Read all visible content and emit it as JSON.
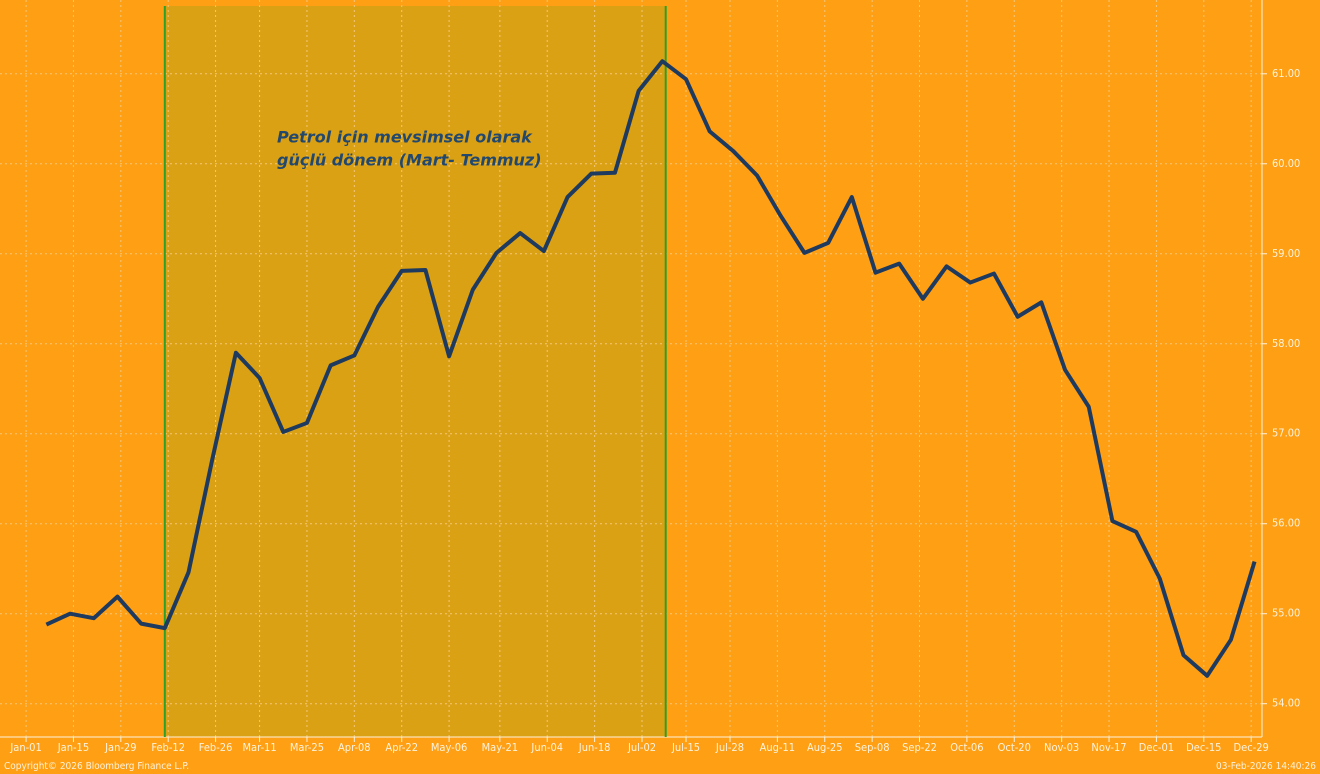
{
  "chart_data": {
    "type": "line",
    "annotation": [
      "Petrol için mevsimsel olarak",
      "güçlü dönem (Mart- Temmuz)"
    ],
    "footer_left": "Copyright© 2026 Bloomberg Finance L.P.",
    "footer_right": "03-Feb-2026 14:40:26",
    "shade": [
      41,
      189
    ],
    "shade_color": "#dba114",
    "shade_line_color": "#2aa02a",
    "grid": true,
    "x": [
      6,
      13,
      20,
      27,
      34,
      41,
      48,
      55,
      62,
      69,
      76,
      83,
      90,
      97,
      104,
      111,
      118,
      125,
      132,
      139,
      146,
      153,
      160,
      167,
      174,
      181,
      188,
      195,
      202,
      209,
      216,
      223,
      230,
      237,
      244,
      251,
      258,
      265,
      272,
      279,
      286,
      293,
      300,
      307,
      314,
      321,
      328,
      335,
      342,
      349,
      356,
      363
    ],
    "series": [
      {
        "color": "#1f3a5f",
        "values": [
          54.88,
          55.0,
          54.95,
          55.19,
          54.89,
          54.84,
          55.46,
          56.71,
          57.9,
          57.62,
          57.02,
          57.12,
          57.76,
          57.87,
          58.41,
          58.81,
          58.82,
          57.86,
          58.6,
          59.01,
          59.23,
          59.03,
          59.63,
          59.89,
          59.9,
          60.81,
          61.14,
          60.94,
          60.36,
          60.14,
          59.87,
          59.42,
          59.01,
          59.12,
          59.63,
          58.79,
          58.89,
          58.5,
          58.86,
          58.68,
          58.78,
          58.3,
          58.46,
          57.71,
          57.3,
          56.03,
          55.91,
          55.39,
          54.54,
          54.31,
          54.71,
          55.58
        ]
      }
    ],
    "xlim": [
      -7.7,
      365.2
    ],
    "xticks": [
      {
        "value": 0,
        "label": "Jan-01"
      },
      {
        "value": 14,
        "label": "Jan-15"
      },
      {
        "value": 28,
        "label": "Jan-29"
      },
      {
        "value": 42,
        "label": "Feb-12"
      },
      {
        "value": 56,
        "label": "Feb-26"
      },
      {
        "value": 69,
        "label": "Mar-11"
      },
      {
        "value": 83,
        "label": "Mar-25"
      },
      {
        "value": 97,
        "label": "Apr-08"
      },
      {
        "value": 111,
        "label": "Apr-22"
      },
      {
        "value": 125,
        "label": "May-06"
      },
      {
        "value": 140,
        "label": "May-21"
      },
      {
        "value": 154,
        "label": "Jun-04"
      },
      {
        "value": 168,
        "label": "Jun-18"
      },
      {
        "value": 182,
        "label": "Jul-02"
      },
      {
        "value": 195,
        "label": "Jul-15"
      },
      {
        "value": 208,
        "label": "Jul-28"
      },
      {
        "value": 222,
        "label": "Aug-11"
      },
      {
        "value": 236,
        "label": "Aug-25"
      },
      {
        "value": 250,
        "label": "Sep-08"
      },
      {
        "value": 264,
        "label": "Sep-22"
      },
      {
        "value": 278,
        "label": "Oct-06"
      },
      {
        "value": 292,
        "label": "Oct-20"
      },
      {
        "value": 306,
        "label": "Nov-03"
      },
      {
        "value": 320,
        "label": "Nov-17"
      },
      {
        "value": 334,
        "label": "Dec-01"
      },
      {
        "value": 348,
        "label": "Dec-15"
      },
      {
        "value": 362,
        "label": "Dec-29"
      }
    ],
    "ylim": [
      53.63,
      61.82
    ],
    "yticks": [
      {
        "value": 54,
        "label": "54.00"
      },
      {
        "value": 55,
        "label": "55.00"
      },
      {
        "value": 56,
        "label": "56.00"
      },
      {
        "value": 57,
        "label": "57.00"
      },
      {
        "value": 58,
        "label": "58.00"
      },
      {
        "value": 59,
        "label": "59.00"
      },
      {
        "value": 60,
        "label": "60.00"
      },
      {
        "value": 61,
        "label": "61.00"
      }
    ]
  }
}
